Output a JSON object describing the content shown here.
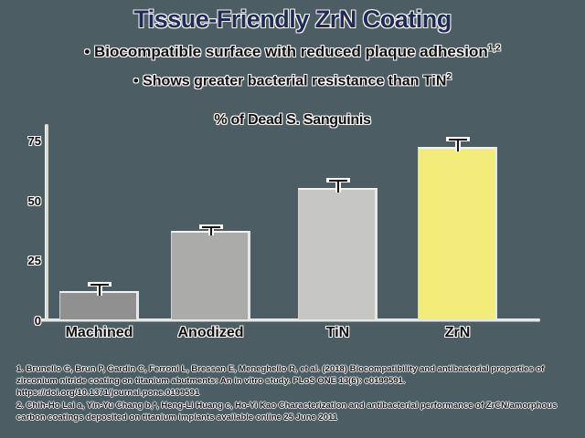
{
  "slide": {
    "title": "Tissue-Friendly ZrN Coating",
    "bullet_marker": "•",
    "bullets": [
      {
        "text": "Biocompatible surface with reduced plaque adhesion",
        "superscript": "1,2"
      },
      {
        "text": "Shows greater bacterial resistance than TiN",
        "superscript": "2"
      }
    ],
    "colors": {
      "background": "#4c5e64",
      "title_text": "#1f2a56",
      "body_text": "#101014",
      "highlight_bar": "#f2ec7a"
    }
  },
  "chart_data": {
    "type": "bar",
    "title": "% of Dead S. Sanguinis",
    "categories": [
      "Machined",
      "Anodized",
      "TiN",
      "ZrN"
    ],
    "values": [
      12,
      37,
      55,
      72
    ],
    "error_bars": [
      2.5,
      1.5,
      3,
      3
    ],
    "bar_colors": [
      "#909090",
      "#ababa9",
      "#c6c6c4",
      "#f2ec7a"
    ],
    "xlabel": "",
    "ylabel": "",
    "ylim": [
      0,
      80
    ],
    "yticks": [
      0,
      25,
      50,
      75
    ],
    "grid": false,
    "legend": false
  },
  "footnotes": {
    "ref1": "1. Brunello G, Brun P, Gardin C, Ferroni L, Bressan E, Meneghello R, et al. (2018) Biocompatibility and antibacterial properties of zirconium nitride coating on titanium abutments: An in vitro study. PLoS ONE 13(6): e0199591. https://doi.org/10.1371/journal.pone.0199591",
    "ref2": "2. Chih-Ho Lai a, Yin-Yu Chang b,*, Heng-Li Huang c, Ho-Yi Kao Characterization and antibacterial performance of ZrCN/amorphous carbon coatings deposited on titanium implants available online 25 June 2011"
  }
}
